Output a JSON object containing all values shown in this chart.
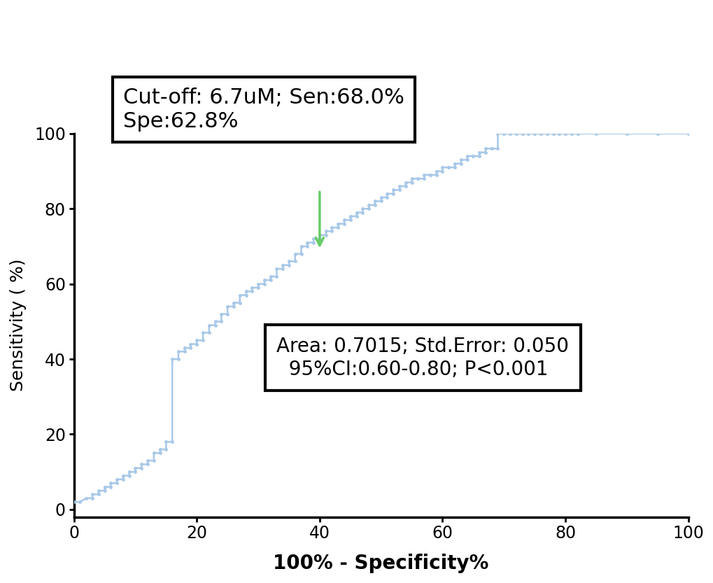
{
  "xlabel": "100% - Specificity%",
  "ylabel": "Sensitivity ( %)",
  "xlim": [
    0,
    100
  ],
  "ylim": [
    -2,
    100
  ],
  "xticks": [
    0,
    20,
    40,
    60,
    80,
    100
  ],
  "yticks": [
    0,
    20,
    40,
    60,
    80,
    100
  ],
  "curve_color": "#a8c8e8",
  "curve_linewidth": 1.8,
  "marker": "o",
  "markersize": 2.5,
  "cutoff_box_text": "Cut-off: 6.7uM; Sen:68.0%\nSpe:62.8%",
  "stats_box_text": "Area: 0.7015; Std.Error: 0.050\n  95%CI:0.60-0.80; P<0.001",
  "arrow_color": "#66cc66",
  "background_color": "#ffffff",
  "font_size_xlabel": 20,
  "font_size_ylabel": 18,
  "font_size_ticks": 17,
  "font_size_cutoff_box": 22,
  "font_size_stats_box": 20,
  "roc_x": [
    0,
    1,
    2,
    3,
    3,
    4,
    4,
    5,
    5,
    6,
    6,
    7,
    7,
    8,
    8,
    9,
    9,
    10,
    10,
    11,
    11,
    12,
    12,
    13,
    13,
    14,
    14,
    15,
    15,
    16,
    16,
    17,
    17,
    18,
    18,
    19,
    19,
    20,
    20,
    21,
    21,
    22,
    22,
    23,
    23,
    24,
    24,
    25,
    25,
    26,
    26,
    27,
    27,
    28,
    28,
    29,
    29,
    30,
    30,
    31,
    31,
    32,
    32,
    33,
    33,
    34,
    34,
    35,
    35,
    36,
    36,
    37,
    37,
    38,
    38,
    39,
    39,
    40,
    40,
    41,
    41,
    42,
    42,
    43,
    43,
    44,
    44,
    45,
    45,
    46,
    46,
    47,
    47,
    48,
    48,
    49,
    49,
    50,
    50,
    51,
    51,
    52,
    52,
    53,
    53,
    54,
    54,
    55,
    55,
    56,
    56,
    57,
    57,
    58,
    58,
    59,
    59,
    60,
    60,
    61,
    61,
    62,
    62,
    63,
    63,
    64,
    64,
    65,
    65,
    66,
    66,
    67,
    67,
    68,
    68,
    69,
    69,
    70,
    70,
    71,
    71,
    72,
    72,
    73,
    73,
    74,
    74,
    75,
    75,
    76,
    76,
    77,
    77,
    78,
    78,
    79,
    79,
    80,
    80,
    81,
    81,
    82,
    82,
    85,
    90,
    95,
    100
  ],
  "roc_y": [
    2,
    2,
    3,
    3,
    4,
    4,
    5,
    5,
    6,
    6,
    7,
    7,
    8,
    8,
    9,
    9,
    10,
    10,
    11,
    11,
    12,
    12,
    13,
    13,
    15,
    15,
    16,
    16,
    18,
    18,
    40,
    40,
    42,
    42,
    43,
    43,
    44,
    44,
    45,
    45,
    47,
    47,
    49,
    49,
    50,
    50,
    52,
    52,
    54,
    54,
    55,
    55,
    57,
    57,
    58,
    58,
    59,
    59,
    60,
    60,
    61,
    61,
    62,
    62,
    64,
    64,
    65,
    65,
    66,
    66,
    68,
    68,
    70,
    70,
    71,
    71,
    72,
    72,
    73,
    73,
    74,
    74,
    75,
    75,
    76,
    76,
    77,
    77,
    78,
    78,
    79,
    79,
    80,
    80,
    81,
    81,
    82,
    82,
    83,
    83,
    84,
    84,
    85,
    85,
    86,
    86,
    87,
    87,
    88,
    88,
    88,
    88,
    89,
    89,
    89,
    89,
    90,
    90,
    91,
    91,
    91,
    91,
    92,
    92,
    93,
    93,
    94,
    94,
    94,
    94,
    95,
    95,
    96,
    96,
    96,
    96,
    100,
    100,
    100,
    100,
    100,
    100,
    100,
    100,
    100,
    100,
    100,
    100,
    100,
    100,
    100,
    100,
    100,
    100,
    100,
    100,
    100,
    100,
    100,
    100,
    100,
    100,
    100,
    100,
    100,
    100,
    100
  ]
}
